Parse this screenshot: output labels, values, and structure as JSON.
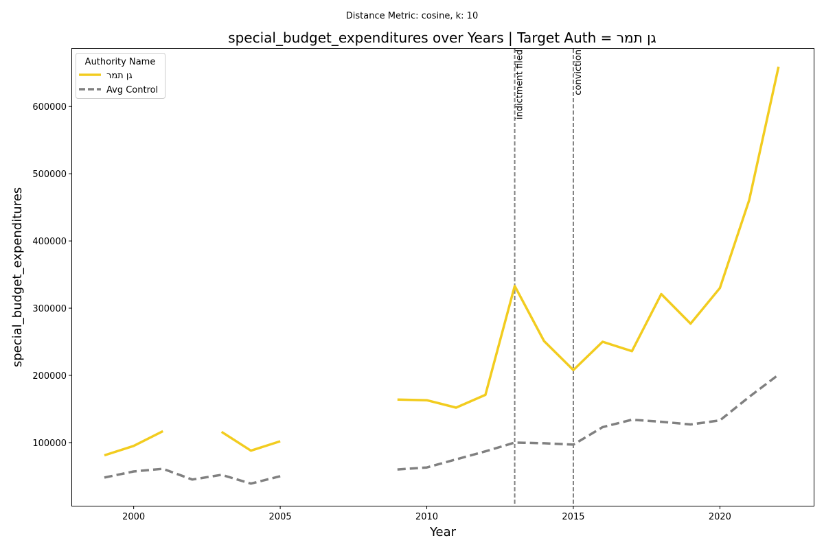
{
  "figure": {
    "suptitle": "Distance Metric: cosine, k: 10",
    "title": "special_budget_expenditures over Years | Target Auth = גן תמר"
  },
  "chart_data": {
    "type": "line",
    "title": "special_budget_expenditures over Years | Target Auth = גן תמר",
    "xlabel": "Year",
    "ylabel": "special_budget_expenditures",
    "xlim": [
      1997.9,
      2023.2
    ],
    "ylim": [
      6000,
      686000
    ],
    "xticks": [
      2000,
      2005,
      2010,
      2015,
      2020
    ],
    "yticks": [
      100000,
      200000,
      300000,
      400000,
      500000,
      600000
    ],
    "grid": false,
    "legend": {
      "title": "Authority Name",
      "position": "top-left"
    },
    "x": [
      1999,
      2000,
      2001,
      2002,
      2003,
      2004,
      2005,
      2006,
      2007,
      2008,
      2009,
      2010,
      2011,
      2012,
      2013,
      2014,
      2015,
      2016,
      2017,
      2018,
      2019,
      2020,
      2021,
      2022
    ],
    "series": [
      {
        "name": "גן תמר",
        "color": "#f2cc1f",
        "style": "solid",
        "values": [
          81000,
          95000,
          117000,
          null,
          116000,
          88000,
          102000,
          null,
          null,
          null,
          164000,
          163000,
          152000,
          171000,
          333000,
          251000,
          208000,
          250000,
          236000,
          321000,
          277000,
          330000,
          461000,
          659000
        ]
      },
      {
        "name": "Avg Control",
        "color": "#808080",
        "style": "dashed",
        "values": [
          48000,
          57000,
          61000,
          45000,
          52000,
          39000,
          50000,
          null,
          null,
          null,
          60000,
          63000,
          75000,
          87000,
          100000,
          99000,
          97000,
          123000,
          134000,
          131000,
          127000,
          133000,
          168000,
          201000
        ]
      }
    ],
    "events": [
      {
        "x": 2013,
        "label": "indictment filed"
      },
      {
        "x": 2015,
        "label": "conviction"
      }
    ],
    "colors": {
      "event_line": "#808080",
      "axes": "#000000"
    }
  }
}
